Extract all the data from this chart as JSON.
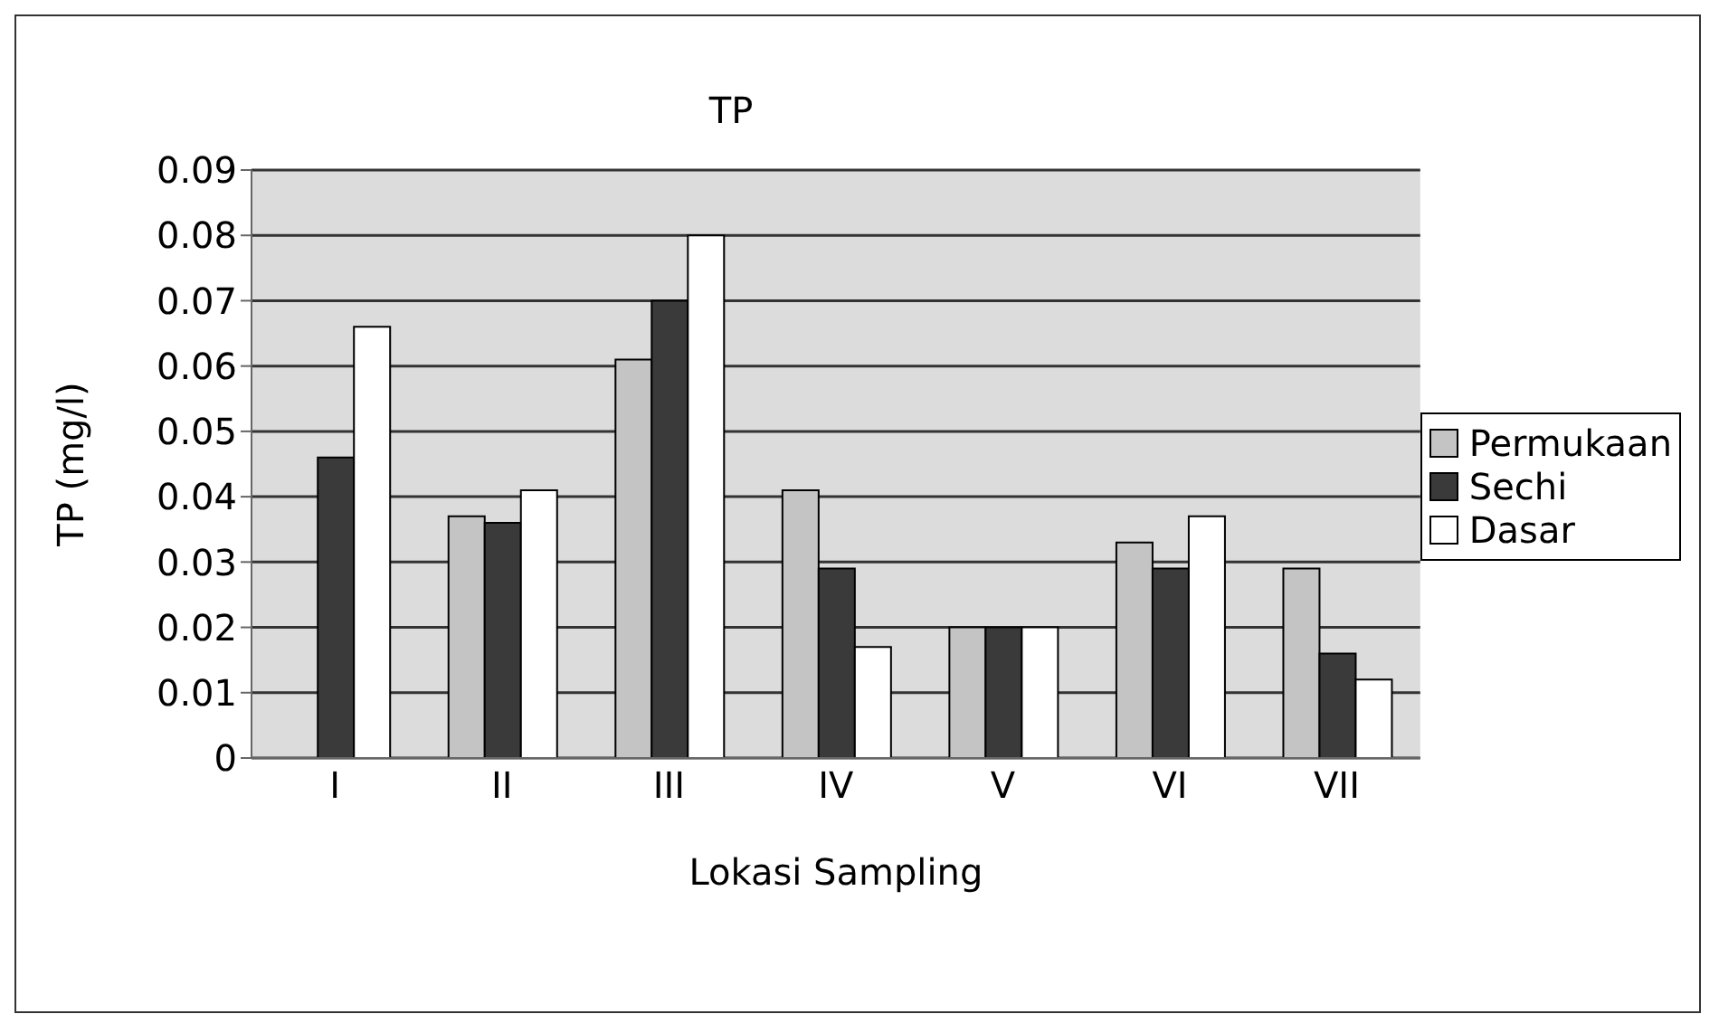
{
  "chart_data": {
    "type": "bar",
    "title": "TP",
    "xlabel": "Lokasi Sampling",
    "ylabel": "TP (mg/l)",
    "categories": [
      "I",
      "II",
      "III",
      "IV",
      "V",
      "VI",
      "VII"
    ],
    "series": [
      {
        "name": "Permukaan",
        "color": "#c4c4c4",
        "values": [
          0,
          0.037,
          0.061,
          0.041,
          0.02,
          0.033,
          0.029
        ]
      },
      {
        "name": "Sechi",
        "color": "#3a3a3a",
        "values": [
          0.046,
          0.036,
          0.07,
          0.029,
          0.02,
          0.029,
          0.016
        ]
      },
      {
        "name": "Dasar",
        "color": "#ffffff",
        "values": [
          0.066,
          0.041,
          0.08,
          0.017,
          0.02,
          0.037,
          0.012
        ]
      }
    ],
    "ylim": [
      0,
      0.09
    ],
    "yticks": [
      0,
      0.01,
      0.02,
      0.03,
      0.04,
      0.05,
      0.06,
      0.07,
      0.08,
      0.09
    ],
    "grid": "y",
    "legend": "right"
  }
}
